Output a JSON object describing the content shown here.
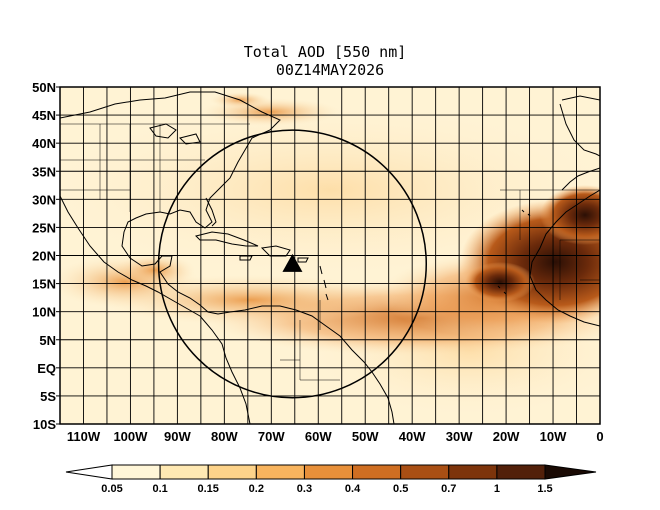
{
  "title": {
    "line1": "Total AOD [550 nm]",
    "line2": "00Z14MAY2026"
  },
  "map": {
    "lat_labels": [
      "50N",
      "45N",
      "40N",
      "35N",
      "30N",
      "25N",
      "20N",
      "15N",
      "10N",
      "5N",
      "EQ",
      "5S",
      "10S"
    ],
    "lon_labels": [
      "110W",
      "100W",
      "90W",
      "80W",
      "70W",
      "60W",
      "50W",
      "40W",
      "30W",
      "20W",
      "10W",
      "0"
    ],
    "extent": {
      "lon_min": -115,
      "lon_max": 0,
      "lat_min": -10,
      "lat_max": 50
    },
    "grid_step_deg": 5,
    "marker": {
      "symbol": "triangle",
      "lon": -65.5,
      "lat": 18.5
    },
    "circle": {
      "center_lon": -65.5,
      "center_lat": 18.5,
      "radius_deg": 28.5
    },
    "aod_features": [
      {
        "name": "saharan-dust-plume",
        "lon": -22,
        "lat": 16,
        "intensity": 1.0
      },
      {
        "name": "dust-transport-band",
        "lon": -40,
        "lat": 10,
        "intensity": 0.45
      },
      {
        "name": "central-america-smoke",
        "lon": -95,
        "lat": 16,
        "intensity": 0.35
      },
      {
        "name": "northeast-coast-band",
        "lon": -70,
        "lat": 44,
        "intensity": 0.3
      }
    ]
  },
  "colorbar": {
    "labels": [
      "0.05",
      "0.1",
      "0.15",
      "0.2",
      "0.3",
      "0.4",
      "0.5",
      "0.7",
      "1",
      "1.5"
    ],
    "colors": [
      "#ffffff",
      "#fff6d8",
      "#ffe9b3",
      "#fdd38a",
      "#f8b45e",
      "#e8903a",
      "#cf6e22",
      "#a94f14",
      "#7d340b",
      "#52200a",
      "#1a0a04"
    ]
  }
}
